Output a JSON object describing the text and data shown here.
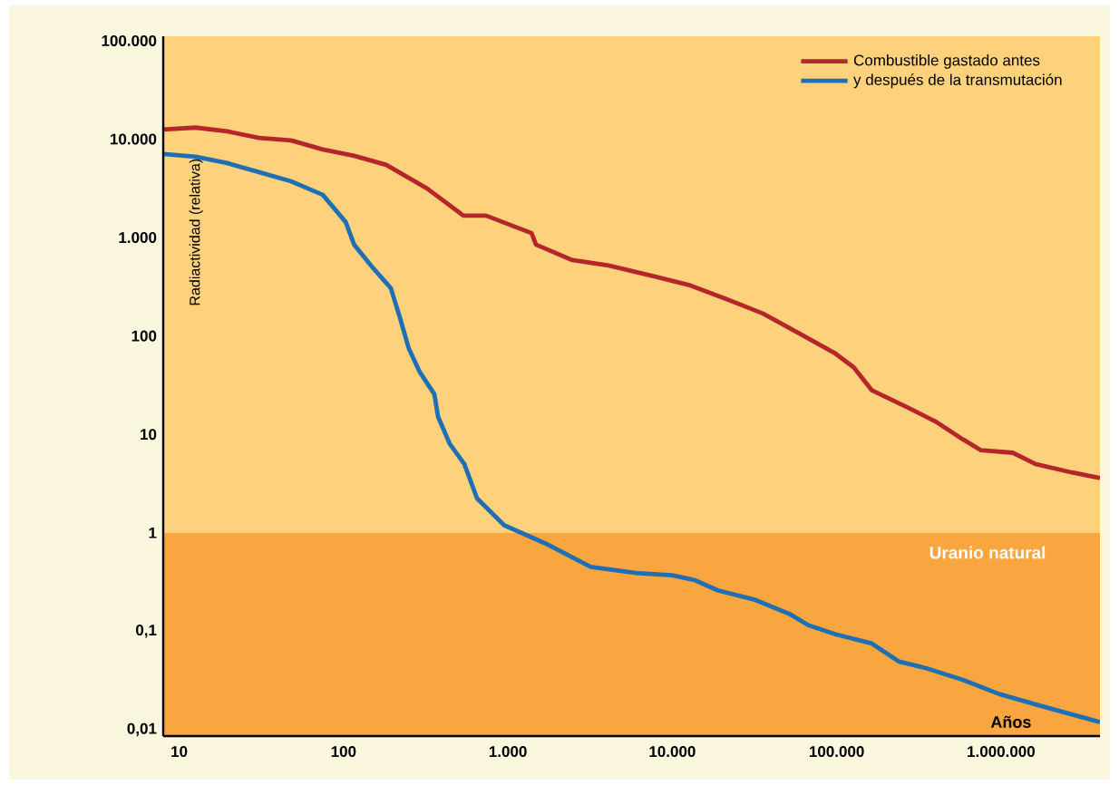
{
  "chart_data": {
    "type": "line",
    "xlabel": "Años",
    "ylabel": "Radiactividad (relativa)",
    "log": "xy",
    "xlim": [
      8,
      4000000
    ],
    "ylim": [
      0.0086,
      111000
    ],
    "xticks": [
      10,
      100,
      {
        "value": 1000,
        "label": "1.000"
      },
      {
        "value": 10000,
        "label": "10.000"
      },
      {
        "value": 100000,
        "label": "100.000"
      },
      {
        "value": 1000000,
        "label": "1.000.000"
      }
    ],
    "yticks": [
      {
        "value": 0.01,
        "label": "0,01"
      },
      {
        "value": 0.1,
        "label": "0,1"
      },
      1,
      10,
      100,
      {
        "value": 1000,
        "label": "1.000"
      },
      {
        "value": 10000,
        "label": "10.000"
      },
      {
        "value": 100000,
        "label": "100.000"
      }
    ],
    "bands": [
      {
        "axis": "y",
        "from": 1,
        "to": 111000,
        "color": "#fed27c"
      },
      {
        "axis": "y",
        "from": 0.0086,
        "to": 1,
        "label": "Uranio natural",
        "color": "#f9a640"
      }
    ],
    "legend": "top right",
    "grid": false,
    "marker": "none",
    "line_style": "solid",
    "series": [
      {
        "name": "Combustible gastado antes",
        "color": "#b5262a",
        "x": [
          8,
          12.6,
          19.6,
          30.6,
          47.9,
          74.7,
          116,
          182,
          322,
          536,
          736,
          1393,
          1483,
          2466,
          4100,
          7760,
          12900,
          21400,
          35600,
          59300,
          98600,
          127000,
          164000,
          273000,
          400000,
          586000,
          755000,
          1180000,
          1620000,
          2700000,
          4000000
        ],
        "values": [
          12500,
          13100,
          12000,
          10300,
          9700,
          7850,
          6770,
          5470,
          3150,
          1670,
          1670,
          1110,
          847,
          590,
          520,
          403,
          326,
          237,
          169,
          106,
          66,
          48,
          28,
          18.6,
          13.5,
          8.9,
          6.9,
          6.5,
          5.0,
          4.1,
          3.6
        ]
      },
      {
        "name": "y después de la transmutación",
        "color": "#1f6fb5",
        "x": [
          8,
          12.6,
          19.6,
          30.6,
          47.9,
          74.7,
          103,
          116,
          150,
          194,
          220,
          250,
          291,
          357,
          376,
          443,
          543,
          649,
          950,
          1690,
          3190,
          6020,
          10000,
          13700,
          18900,
          31400,
          52300,
          67400,
          98600,
          164000,
          240000,
          352000,
          586000,
          975000,
          1840000,
          4000000
        ],
        "values": [
          7060,
          6620,
          5710,
          4620,
          3730,
          2720,
          1440,
          847,
          498,
          306,
          155,
          74,
          43,
          25.6,
          15.1,
          8.0,
          5.0,
          2.24,
          1.19,
          0.78,
          0.45,
          0.39,
          0.37,
          0.33,
          0.26,
          0.21,
          0.148,
          0.115,
          0.093,
          0.075,
          0.049,
          0.042,
          0.032,
          0.023,
          0.017,
          0.0119
        ]
      }
    ]
  }
}
